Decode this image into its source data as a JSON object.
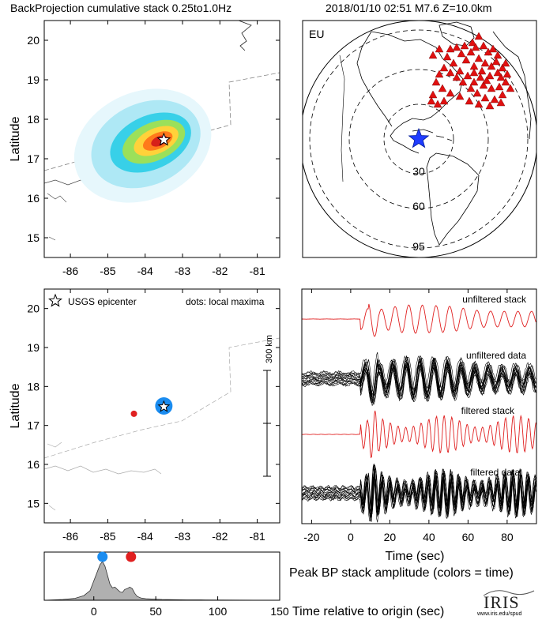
{
  "header": {
    "left_title": "BackProjection cumulative stack 0.25to1.0Hz",
    "right_title": "2018/01/10 02:51   M7.6  Z=10.0km"
  },
  "chart_data": [
    {
      "type": "heatmap",
      "panel": "backprojection-cumulative-stack",
      "title": "BackProjection cumulative stack 0.25to1.0Hz",
      "xlabel": "",
      "ylabel": "Latitude",
      "xlim": [
        -86.7,
        -80.4
      ],
      "ylim": [
        14.5,
        20.5
      ],
      "xticks": [
        -86,
        -85,
        -84,
        -83,
        -82,
        -81
      ],
      "yticks": [
        15,
        16,
        17,
        18,
        19,
        20
      ],
      "peak": {
        "lon": -83.6,
        "lat": 17.45
      },
      "epicenter": {
        "lon": -83.5,
        "lat": 17.48
      },
      "colormap": [
        "#e6f7fc",
        "#aee8f5",
        "#38d0e8",
        "#9be05a",
        "#ffd23a",
        "#ff7a1a",
        "#d6201a"
      ]
    },
    {
      "type": "scatter",
      "panel": "station-map",
      "label": "EU",
      "distance_rings_deg": [
        30,
        60,
        95
      ],
      "ring_labels": [
        "30",
        "60",
        "95"
      ],
      "station_color": "#e01010",
      "epicenter_color": "#1f3cff"
    },
    {
      "type": "scatter",
      "panel": "local-maxima",
      "xlabel": "",
      "ylabel": "Latitude",
      "xlim": [
        -86.7,
        -80.4
      ],
      "ylim": [
        14.5,
        20.5
      ],
      "xticks": [
        -86,
        -85,
        -84,
        -83,
        -82,
        -81
      ],
      "yticks": [
        15,
        16,
        17,
        18,
        19,
        20
      ],
      "legend_epicenter": "USGS epicenter",
      "legend_dots": "dots: local maxima",
      "points": [
        {
          "lon": -84.3,
          "lat": 17.3,
          "color": "#e02020",
          "size": 4
        },
        {
          "lon": -83.5,
          "lat": 17.5,
          "color": "#1a8cf0",
          "size": 11
        }
      ],
      "epicenter": {
        "lon": -83.5,
        "lat": 17.48
      },
      "scale_bar_label": "300 km"
    },
    {
      "type": "line",
      "panel": "seismograms",
      "xlabel": "Time (sec)",
      "xlim": [
        -25,
        95
      ],
      "xticks": [
        -20,
        0,
        20,
        40,
        60,
        80
      ],
      "traces": [
        {
          "name": "unfiltered stack",
          "color": "#e02020"
        },
        {
          "name": "unfiltered data",
          "color": "#000000"
        },
        {
          "name": "filtered stack",
          "color": "#e02020"
        },
        {
          "name": "filtered data",
          "color": "#000000"
        }
      ]
    },
    {
      "type": "area",
      "panel": "peak-bp-amplitude",
      "title": "Peak BP stack amplitude (colors = time)",
      "xlabel": "Time relative to origin (sec)",
      "xlim": [
        -40,
        150
      ],
      "xticks": [
        0,
        50,
        100,
        150
      ],
      "x": [
        -40,
        -25,
        -15,
        -8,
        -3,
        0,
        3,
        5,
        7,
        9,
        11,
        13,
        15,
        17,
        19,
        21,
        23,
        25,
        27,
        29,
        31,
        33,
        35,
        38,
        42,
        48,
        55,
        65,
        75,
        90,
        110,
        130,
        150
      ],
      "values": [
        0,
        0.02,
        0.05,
        0.12,
        0.25,
        0.5,
        0.75,
        0.92,
        1.0,
        0.88,
        0.65,
        0.42,
        0.32,
        0.34,
        0.28,
        0.22,
        0.2,
        0.28,
        0.3,
        0.34,
        0.3,
        0.18,
        0.1,
        0.06,
        0.04,
        0.03,
        0.02,
        0.015,
        0.01,
        0.008,
        0.005,
        0.003,
        0
      ],
      "markers": [
        {
          "x": 7,
          "color": "#1a8cf0"
        },
        {
          "x": 30,
          "color": "#e02020"
        }
      ],
      "fill_color": "#b0b0b0"
    }
  ],
  "footer": {
    "logo_text": "IRIS",
    "logo_url": "www.iris.edu/spud"
  }
}
